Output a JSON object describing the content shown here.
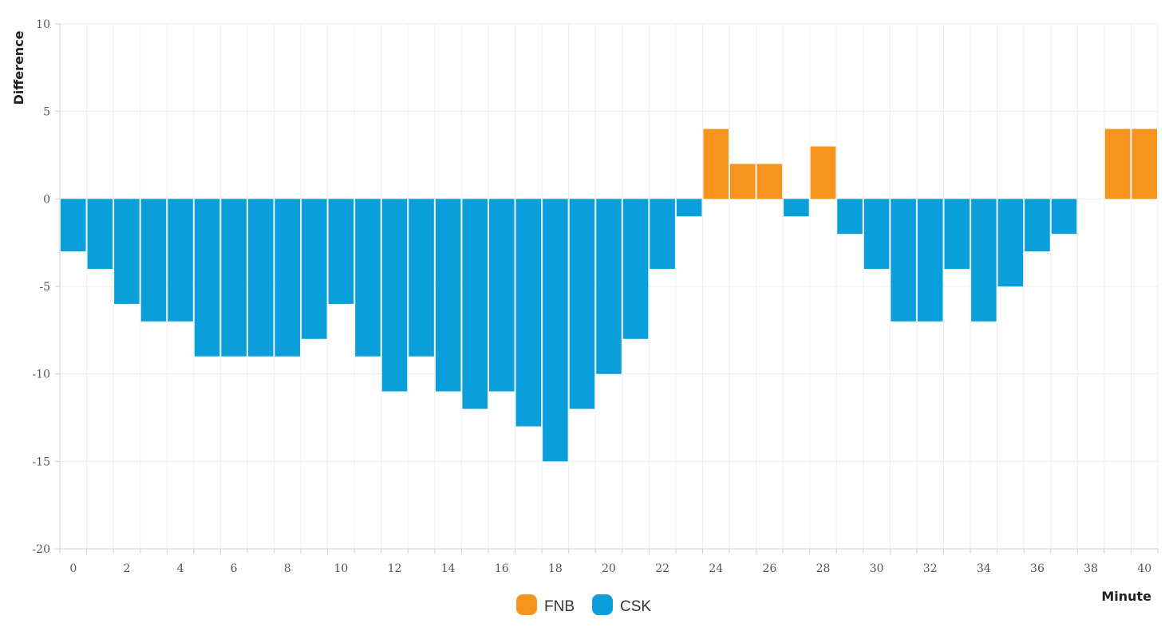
{
  "chart_data": {
    "type": "bar",
    "xlabel": "Minute",
    "ylabel": "Difference",
    "ylim": [
      -20,
      10
    ],
    "yticks": [
      10,
      5,
      0,
      -5,
      -10,
      -15,
      -20
    ],
    "xlim": [
      -0.5,
      40.5
    ],
    "xtick_labels": [
      "0",
      "2",
      "4",
      "6",
      "8",
      "10",
      "12",
      "14",
      "16",
      "18",
      "20",
      "22",
      "24",
      "26",
      "28",
      "30",
      "32",
      "34",
      "36",
      "38",
      "40"
    ],
    "grid": true,
    "legend_position": "bottom-center",
    "x": [
      0,
      1,
      2,
      3,
      4,
      5,
      6,
      7,
      8,
      9,
      10,
      11,
      12,
      13,
      14,
      15,
      16,
      17,
      18,
      19,
      20,
      21,
      22,
      23,
      24,
      25,
      26,
      27,
      28,
      29,
      30,
      31,
      32,
      33,
      34,
      35,
      36,
      37,
      38,
      39,
      40
    ],
    "values": [
      -3,
      -4,
      -6,
      -7,
      -7,
      -9,
      -9,
      -9,
      -9,
      -8,
      -6,
      -9,
      -11,
      -9,
      -11,
      -12,
      -11,
      -13,
      -15,
      -12,
      -10,
      -8,
      -4,
      -1,
      4,
      2,
      2,
      -1,
      3,
      -2,
      -4,
      -7,
      -7,
      -4,
      -7,
      -5,
      -3,
      -2,
      0,
      4,
      4
    ],
    "series": [
      {
        "name": "FNB",
        "color": "#f7941d",
        "rule": "positive"
      },
      {
        "name": "CSK",
        "color": "#0a9fdb",
        "rule": "negative"
      }
    ]
  }
}
